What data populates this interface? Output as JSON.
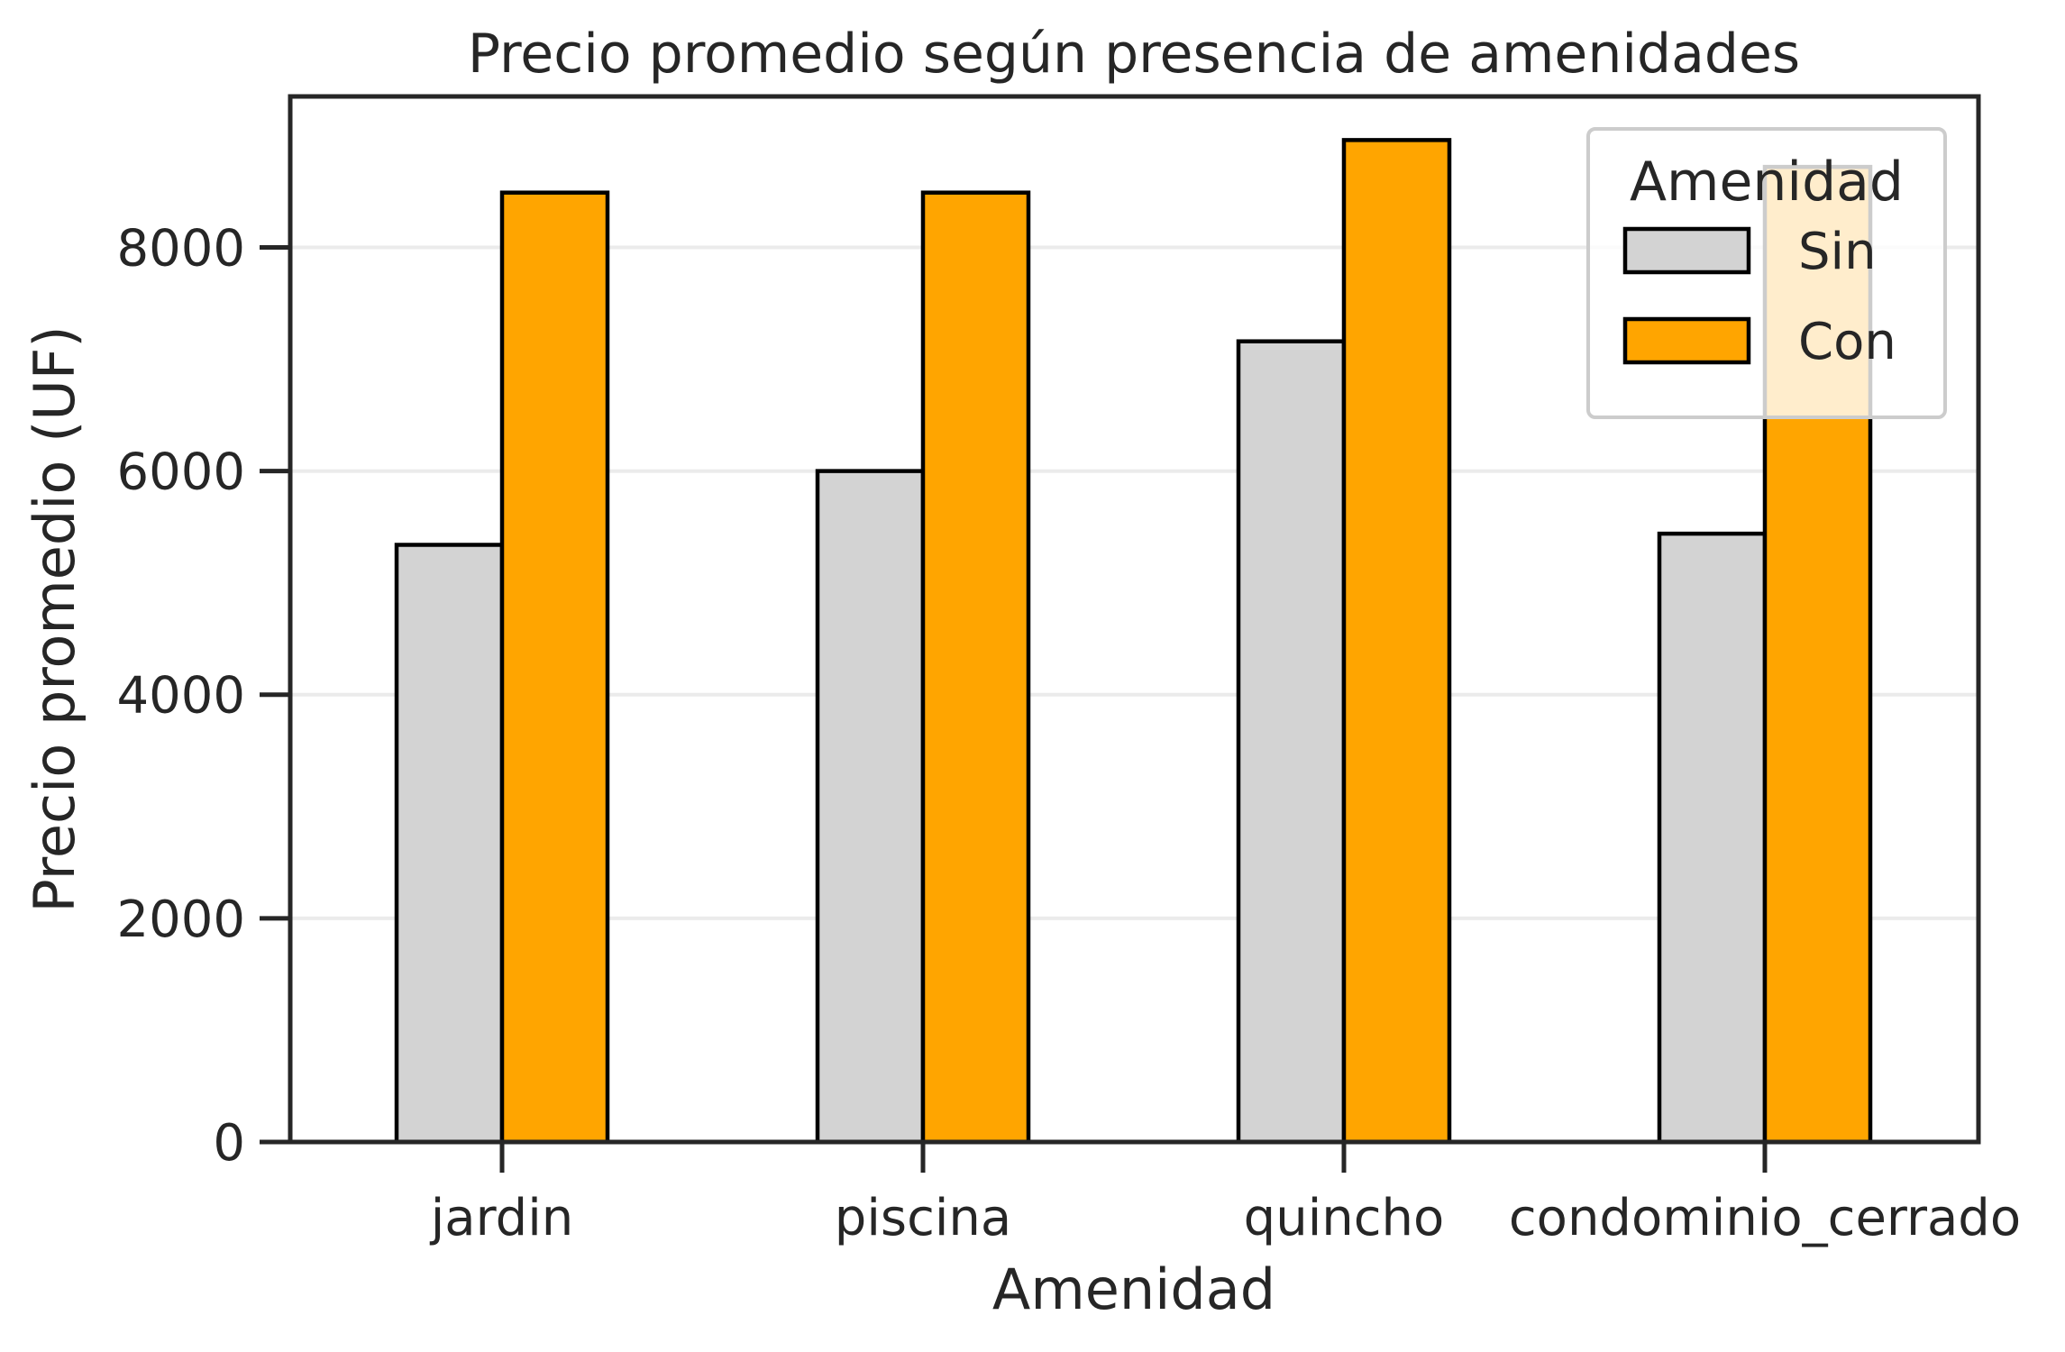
{
  "chart_data": {
    "type": "bar",
    "title": "Precio promedio según presencia de amenidades",
    "xlabel": "Amenidad",
    "ylabel": "Precio promedio (UF)",
    "categories": [
      "jardin",
      "piscina",
      "quincho",
      "condominio_cerrado"
    ],
    "series": [
      {
        "name": "Sin",
        "values": [
          5340,
          6000,
          7160,
          5440
        ],
        "color": "#d3d3d3"
      },
      {
        "name": "Con",
        "values": [
          8490,
          8490,
          8960,
          8720
        ],
        "color": "#ffa500"
      }
    ],
    "ylim": [
      0,
      9350
    ],
    "yticks": [
      0,
      2000,
      4000,
      6000,
      8000
    ],
    "grid": "horizontal",
    "legend": {
      "title": "Amenidad",
      "placement": "top-right"
    }
  }
}
